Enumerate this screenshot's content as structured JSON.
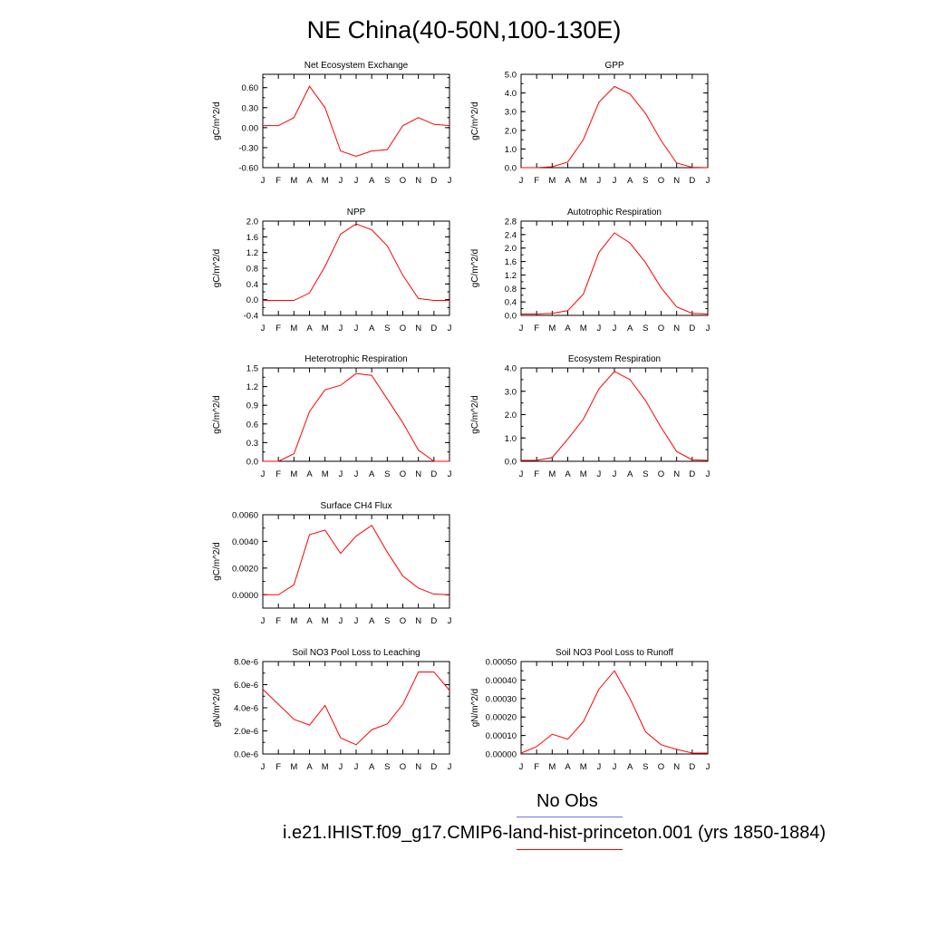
{
  "title": "NE China(40-50N,100-130E)",
  "legend": {
    "obs_label": "No Obs",
    "obs_color": "#6f6ff0",
    "model_label": "i.e21.IHIST.f09_g17.CMIP6-land-hist-princeton.001 (yrs 1850-1884)",
    "model_color": "#ff0000"
  },
  "chart_data": [
    {
      "type": "line",
      "title": "Net Ecosystem Exchange",
      "ylabel": "gC/m^2/d",
      "categories": [
        "J",
        "F",
        "M",
        "A",
        "M",
        "J",
        "J",
        "A",
        "S",
        "O",
        "N",
        "D",
        "J"
      ],
      "ylim": [
        -0.6,
        0.8
      ],
      "yticks": [
        -0.6,
        -0.3,
        0.0,
        0.3,
        0.6
      ],
      "ytick_labels": [
        "-0.60",
        "-0.30",
        "0.00",
        "0.30",
        "0.60"
      ],
      "values": [
        0.03,
        0.03,
        0.15,
        0.62,
        0.3,
        -0.35,
        -0.43,
        -0.35,
        -0.33,
        0.03,
        0.15,
        0.05,
        0.03
      ],
      "line_color": "#ff0000"
    },
    {
      "type": "line",
      "title": "GPP",
      "ylabel": "gC/m^2/d",
      "categories": [
        "J",
        "F",
        "M",
        "A",
        "M",
        "J",
        "J",
        "A",
        "S",
        "O",
        "N",
        "D",
        "J"
      ],
      "ylim": [
        0,
        5
      ],
      "yticks": [
        0,
        1,
        2,
        3,
        4,
        5
      ],
      "ytick_labels": [
        "0.0",
        "1.0",
        "2.0",
        "3.0",
        "4.0",
        "5.0"
      ],
      "values": [
        0.0,
        0.0,
        0.05,
        0.3,
        1.5,
        3.5,
        4.35,
        3.95,
        2.9,
        1.45,
        0.25,
        0.02,
        0.0
      ],
      "line_color": "#ff0000"
    },
    {
      "type": "line",
      "title": "NPP",
      "ylabel": "gC/m^2/d",
      "categories": [
        "J",
        "F",
        "M",
        "A",
        "M",
        "J",
        "J",
        "A",
        "S",
        "O",
        "N",
        "D",
        "J"
      ],
      "ylim": [
        -0.4,
        2.0
      ],
      "yticks": [
        -0.4,
        0.0,
        0.4,
        0.8,
        1.2,
        1.6,
        2.0
      ],
      "ytick_labels": [
        "-0.4",
        "0.0",
        "0.4",
        "0.8",
        "1.2",
        "1.6",
        "2.0"
      ],
      "values": [
        -0.02,
        -0.02,
        -0.02,
        0.17,
        0.85,
        1.67,
        1.93,
        1.78,
        1.37,
        0.62,
        0.03,
        -0.02,
        -0.02
      ],
      "line_color": "#ff0000"
    },
    {
      "type": "line",
      "title": "Autotrophic Respiration",
      "ylabel": "gC/m^2/d",
      "categories": [
        "J",
        "F",
        "M",
        "A",
        "M",
        "J",
        "J",
        "A",
        "S",
        "O",
        "N",
        "D",
        "J"
      ],
      "ylim": [
        0,
        2.8
      ],
      "yticks": [
        0,
        0.4,
        0.8,
        1.2,
        1.6,
        2.0,
        2.4,
        2.8
      ],
      "ytick_labels": [
        "0.0",
        "0.4",
        "0.8",
        "1.2",
        "1.6",
        "2.0",
        "2.4",
        "2.8"
      ],
      "values": [
        0.04,
        0.04,
        0.06,
        0.14,
        0.63,
        1.87,
        2.45,
        2.15,
        1.57,
        0.82,
        0.25,
        0.06,
        0.04
      ],
      "line_color": "#ff0000"
    },
    {
      "type": "line",
      "title": "Heterotrophic Respiration",
      "ylabel": "gC/m^2/d",
      "categories": [
        "J",
        "F",
        "M",
        "A",
        "M",
        "J",
        "J",
        "A",
        "S",
        "O",
        "N",
        "D",
        "J"
      ],
      "ylim": [
        0,
        1.5
      ],
      "yticks": [
        0,
        0.3,
        0.6,
        0.9,
        1.2,
        1.5
      ],
      "ytick_labels": [
        "0.0",
        "0.3",
        "0.6",
        "0.9",
        "1.2",
        "1.5"
      ],
      "values": [
        0.0,
        0.0,
        0.12,
        0.8,
        1.15,
        1.22,
        1.41,
        1.38,
        1.0,
        0.62,
        0.18,
        0.0,
        0.0
      ],
      "line_color": "#ff0000"
    },
    {
      "type": "line",
      "title": "Ecosystem Respiration",
      "ylabel": "gC/m^2/d",
      "categories": [
        "J",
        "F",
        "M",
        "A",
        "M",
        "J",
        "J",
        "A",
        "S",
        "O",
        "N",
        "D",
        "J"
      ],
      "ylim": [
        0,
        4.0
      ],
      "yticks": [
        0,
        1,
        2,
        3,
        4
      ],
      "ytick_labels": [
        "0.0",
        "1.0",
        "2.0",
        "3.0",
        "4.0"
      ],
      "values": [
        0.04,
        0.04,
        0.16,
        0.95,
        1.8,
        3.1,
        3.85,
        3.5,
        2.6,
        1.45,
        0.42,
        0.06,
        0.04
      ],
      "line_color": "#ff0000"
    },
    {
      "type": "line",
      "title": "Surface CH4 Flux",
      "ylabel": "gC/m^2/d",
      "categories": [
        "J",
        "F",
        "M",
        "A",
        "M",
        "J",
        "J",
        "A",
        "S",
        "O",
        "N",
        "D",
        "J"
      ],
      "ylim": [
        -0.001,
        0.006
      ],
      "yticks": [
        0,
        0.002,
        0.004,
        0.006
      ],
      "ytick_labels": [
        "0.0000",
        "0.0020",
        "0.0040",
        "0.0060"
      ],
      "values": [
        0.0,
        0.0,
        0.00075,
        0.0045,
        0.00485,
        0.0031,
        0.0044,
        0.0052,
        0.0032,
        0.0014,
        0.0005,
        5e-05,
        0.0
      ],
      "line_color": "#ff0000"
    },
    {
      "type": "line",
      "title": "Soil NO3 Pool Loss to Leaching",
      "ylabel": "gN/m^2/d",
      "categories": [
        "J",
        "F",
        "M",
        "A",
        "M",
        "J",
        "J",
        "A",
        "S",
        "O",
        "N",
        "D",
        "J"
      ],
      "ylim": [
        0,
        8e-06
      ],
      "yticks": [
        0,
        2e-06,
        4e-06,
        6e-06,
        8e-06
      ],
      "ytick_labels": [
        "0.0e-6",
        "2.0e-6",
        "4.0e-6",
        "6.0e-6",
        "8.0e-6"
      ],
      "values": [
        5.6e-06,
        4.3e-06,
        3e-06,
        2.5e-06,
        4.2e-06,
        1.4e-06,
        8e-07,
        2.1e-06,
        2.6e-06,
        4.3e-06,
        7.1e-06,
        7.1e-06,
        5.5e-06
      ],
      "line_color": "#ff0000"
    },
    {
      "type": "line",
      "title": "Soil NO3 Pool Loss to Runoff",
      "ylabel": "gN/m^2/d",
      "categories": [
        "J",
        "F",
        "M",
        "A",
        "M",
        "J",
        "J",
        "A",
        "S",
        "O",
        "N",
        "D",
        "J"
      ],
      "ylim": [
        0,
        0.0005
      ],
      "yticks": [
        0,
        0.0001,
        0.0002,
        0.0003,
        0.0004,
        0.0005
      ],
      "ytick_labels": [
        "0.00000",
        "0.00010",
        "0.00020",
        "0.00030",
        "0.00040",
        "0.00050"
      ],
      "values": [
        5e-06,
        4e-05,
        0.000107,
        8e-05,
        0.000175,
        0.00035,
        0.00045,
        0.0003,
        0.00012,
        5e-05,
        2.5e-05,
        5e-06,
        5e-06
      ],
      "line_color": "#ff0000"
    }
  ]
}
